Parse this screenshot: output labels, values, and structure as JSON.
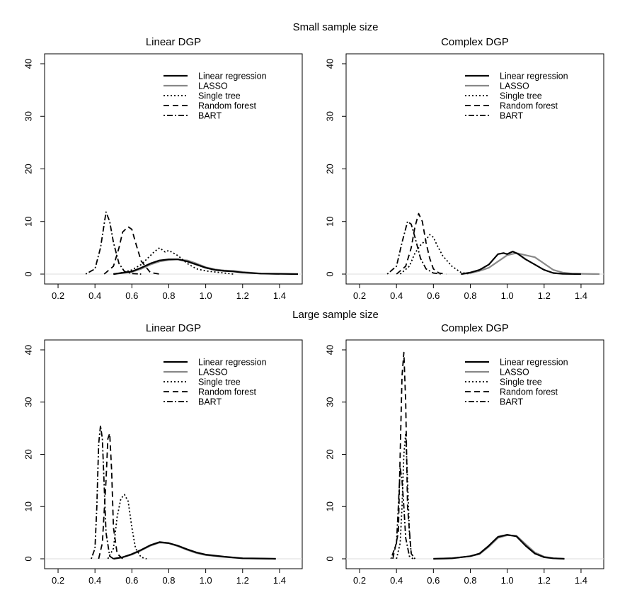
{
  "row_titles": [
    "Small sample size",
    "Large sample size"
  ],
  "legend": [
    {
      "label": "Linear regression",
      "color": "#000000",
      "dash": "solid",
      "width": "thick"
    },
    {
      "label": "LASSO",
      "color": "#888888",
      "dash": "solid",
      "width": "thick"
    },
    {
      "label": "Single tree",
      "color": "#000000",
      "dash": "dotted",
      "width": "normal"
    },
    {
      "label": "Random forest",
      "color": "#000000",
      "dash": "dashed",
      "width": "normal"
    },
    {
      "label": "BART",
      "color": "#000000",
      "dash": "dotdash",
      "width": "normal"
    }
  ],
  "chart_data": [
    {
      "type": "line",
      "title": "Linear DGP",
      "row": "Small sample size",
      "xlim": [
        0.15,
        1.5
      ],
      "ylim": [
        0,
        40
      ],
      "x_ticks": [
        0.2,
        0.4,
        0.6,
        0.8,
        1.0,
        1.2,
        1.4
      ],
      "x_tick_labels": [
        "0.2",
        "0.4",
        "0.6",
        "0.8",
        "1.0",
        "1.2",
        "1.4"
      ],
      "y_ticks": [
        0,
        10,
        20,
        30,
        40
      ],
      "y_tick_labels": [
        "0",
        "10",
        "20",
        "30",
        "40"
      ],
      "series": [
        {
          "name": "Linear regression",
          "x": [
            0.5,
            0.6,
            0.65,
            0.7,
            0.75,
            0.8,
            0.85,
            0.9,
            0.95,
            1.0,
            1.05,
            1.1,
            1.15,
            1.2,
            1.3,
            1.4,
            1.5
          ],
          "y": [
            0,
            0.5,
            1.2,
            2,
            2.6,
            2.8,
            2.8,
            2.4,
            1.8,
            1.2,
            0.8,
            0.6,
            0.5,
            0.3,
            0.1,
            0.05,
            0
          ]
        },
        {
          "name": "LASSO",
          "x": [
            0.5,
            0.6,
            0.65,
            0.7,
            0.75,
            0.8,
            0.85,
            0.9,
            0.95,
            1.0,
            1.05,
            1.1,
            1.15,
            1.2,
            1.3,
            1.4
          ],
          "y": [
            0,
            0.4,
            1,
            1.8,
            2.4,
            2.7,
            2.8,
            2.6,
            2,
            1.3,
            0.9,
            0.7,
            0.6,
            0.4,
            0.1,
            0
          ]
        },
        {
          "name": "Single tree",
          "x": [
            0.5,
            0.55,
            0.6,
            0.65,
            0.7,
            0.72,
            0.75,
            0.78,
            0.8,
            0.85,
            0.9,
            0.95,
            1.0,
            1.05,
            1.1,
            1.15
          ],
          "y": [
            0,
            0.3,
            0.8,
            1.8,
            3.5,
            4.2,
            5,
            4.2,
            4.5,
            3.5,
            2,
            1,
            0.6,
            0.4,
            0.2,
            0
          ]
        },
        {
          "name": "Random forest",
          "x": [
            0.45,
            0.5,
            0.53,
            0.55,
            0.58,
            0.6,
            0.62,
            0.65,
            0.7,
            0.75
          ],
          "y": [
            0,
            1.5,
            5,
            8,
            9,
            8.5,
            6,
            2.5,
            0.3,
            0
          ]
        },
        {
          "name": "BART",
          "x": [
            0.35,
            0.4,
            0.43,
            0.46,
            0.48,
            0.5,
            0.53,
            0.56,
            0.6,
            0.65
          ],
          "y": [
            0,
            1,
            5,
            11.8,
            10,
            6,
            2,
            0.5,
            0.1,
            0
          ]
        }
      ]
    },
    {
      "type": "line",
      "title": "Complex DGP",
      "row": "Small sample size",
      "xlim": [
        0.15,
        1.5
      ],
      "ylim": [
        0,
        40
      ],
      "x_ticks": [
        0.2,
        0.4,
        0.6,
        0.8,
        1.0,
        1.2,
        1.4
      ],
      "x_tick_labels": [
        "0.2",
        "0.4",
        "0.6",
        "0.8",
        "1.0",
        "1.2",
        "1.4"
      ],
      "y_ticks": [
        0,
        10,
        20,
        30,
        40
      ],
      "y_tick_labels": [
        "0",
        "10",
        "20",
        "30",
        "40"
      ],
      "series": [
        {
          "name": "Linear regression",
          "x": [
            0.75,
            0.8,
            0.85,
            0.9,
            0.95,
            0.98,
            1.0,
            1.03,
            1.06,
            1.1,
            1.15,
            1.2,
            1.25,
            1.3,
            1.4
          ],
          "y": [
            0,
            0.3,
            0.8,
            1.8,
            3.8,
            4,
            3.8,
            4.3,
            3.8,
            2.8,
            1.8,
            0.8,
            0.2,
            0.05,
            0
          ]
        },
        {
          "name": "LASSO",
          "x": [
            0.75,
            0.8,
            0.85,
            0.9,
            0.95,
            1.0,
            1.05,
            1.1,
            1.15,
            1.2,
            1.25,
            1.3,
            1.35,
            1.4,
            1.5
          ],
          "y": [
            0,
            0.2,
            0.6,
            1.2,
            2.4,
            3.6,
            4,
            3.6,
            3.2,
            2,
            0.8,
            0.3,
            0.1,
            0.05,
            0
          ]
        },
        {
          "name": "Single tree",
          "x": [
            0.42,
            0.47,
            0.5,
            0.53,
            0.56,
            0.58,
            0.6,
            0.62,
            0.65,
            0.7,
            0.75,
            0.8
          ],
          "y": [
            0,
            1.5,
            4,
            5.5,
            6.5,
            7.5,
            7,
            5.5,
            3.5,
            1.5,
            0.3,
            0
          ]
        },
        {
          "name": "Random forest",
          "x": [
            0.4,
            0.45,
            0.48,
            0.5,
            0.52,
            0.54,
            0.56,
            0.58,
            0.6,
            0.63,
            0.67
          ],
          "y": [
            0,
            1.5,
            5,
            9,
            11.5,
            10,
            6,
            3,
            1,
            0.2,
            0
          ]
        },
        {
          "name": "BART",
          "x": [
            0.35,
            0.4,
            0.43,
            0.46,
            0.48,
            0.5,
            0.53,
            0.56,
            0.6,
            0.65
          ],
          "y": [
            0,
            1.5,
            6,
            10,
            9.5,
            7,
            3,
            1,
            0.2,
            0
          ]
        }
      ]
    },
    {
      "type": "line",
      "title": "Linear DGP",
      "row": "Large sample size",
      "xlim": [
        0.15,
        1.5
      ],
      "ylim": [
        0,
        40
      ],
      "x_ticks": [
        0.2,
        0.4,
        0.6,
        0.8,
        1.0,
        1.2,
        1.4
      ],
      "x_tick_labels": [
        "0.2",
        "0.4",
        "0.6",
        "0.8",
        "1.0",
        "1.2",
        "1.4"
      ],
      "y_ticks": [
        0,
        10,
        20,
        30,
        40
      ],
      "y_tick_labels": [
        "0",
        "10",
        "20",
        "30",
        "40"
      ],
      "series": [
        {
          "name": "Linear regression",
          "x": [
            0.5,
            0.55,
            0.6,
            0.65,
            0.7,
            0.75,
            0.8,
            0.85,
            0.9,
            0.95,
            1.0,
            1.1,
            1.2,
            1.3,
            1.38
          ],
          "y": [
            0,
            0.3,
            0.9,
            1.7,
            2.6,
            3.2,
            3,
            2.5,
            1.8,
            1.2,
            0.8,
            0.4,
            0.1,
            0.05,
            0
          ]
        },
        {
          "name": "LASSO",
          "x": [
            0.5,
            0.55,
            0.6,
            0.65,
            0.7,
            0.75,
            0.8,
            0.85,
            0.9,
            0.95,
            1.0,
            1.1,
            1.2,
            1.3,
            1.38
          ],
          "y": [
            0,
            0.3,
            0.8,
            1.6,
            2.5,
            3.1,
            3,
            2.4,
            1.7,
            1.1,
            0.7,
            0.35,
            0.1,
            0.05,
            0
          ]
        },
        {
          "name": "Single tree",
          "x": [
            0.47,
            0.5,
            0.52,
            0.54,
            0.56,
            0.58,
            0.6,
            0.62,
            0.65,
            0.68
          ],
          "y": [
            0,
            2,
            8,
            11.5,
            12.3,
            11,
            6,
            2,
            0.3,
            0
          ]
        },
        {
          "name": "Random forest",
          "x": [
            0.42,
            0.44,
            0.46,
            0.47,
            0.48,
            0.49,
            0.5,
            0.52,
            0.55
          ],
          "y": [
            0,
            3,
            15,
            23,
            24,
            17,
            6,
            1,
            0
          ]
        },
        {
          "name": "BART",
          "x": [
            0.38,
            0.4,
            0.41,
            0.42,
            0.43,
            0.44,
            0.45,
            0.46,
            0.48,
            0.5
          ],
          "y": [
            0,
            2,
            10,
            22,
            25.5,
            23,
            14,
            5,
            0.5,
            0
          ]
        }
      ]
    },
    {
      "type": "line",
      "title": "Complex DGP",
      "row": "Large sample size",
      "xlim": [
        0.15,
        1.5
      ],
      "ylim": [
        0,
        40
      ],
      "x_ticks": [
        0.2,
        0.4,
        0.6,
        0.8,
        1.0,
        1.2,
        1.4
      ],
      "x_tick_labels": [
        "0.2",
        "0.4",
        "0.6",
        "0.8",
        "1.0",
        "1.2",
        "1.4"
      ],
      "y_ticks": [
        0,
        10,
        20,
        30,
        40
      ],
      "y_tick_labels": [
        "0",
        "10",
        "20",
        "30",
        "40"
      ],
      "series": [
        {
          "name": "Linear regression",
          "x": [
            0.6,
            0.7,
            0.8,
            0.85,
            0.9,
            0.95,
            1.0,
            1.05,
            1.1,
            1.15,
            1.2,
            1.25,
            1.31
          ],
          "y": [
            0,
            0.1,
            0.5,
            1,
            2.5,
            4.2,
            4.6,
            4.3,
            2.5,
            1,
            0.3,
            0.1,
            0
          ]
        },
        {
          "name": "LASSO",
          "x": [
            0.6,
            0.7,
            0.8,
            0.85,
            0.9,
            0.95,
            1.0,
            1.05,
            1.1,
            1.15,
            1.2,
            1.25,
            1.31
          ],
          "y": [
            0,
            0.1,
            0.5,
            0.9,
            2.3,
            4,
            4.5,
            4.4,
            2.8,
            1.2,
            0.4,
            0.1,
            0
          ]
        },
        {
          "name": "Single tree",
          "x": [
            0.4,
            0.42,
            0.43,
            0.44,
            0.45,
            0.46,
            0.47,
            0.48,
            0.5
          ],
          "y": [
            0,
            3,
            10,
            20,
            24,
            15,
            5,
            1,
            0
          ]
        },
        {
          "name": "Random forest",
          "x": [
            0.38,
            0.41,
            0.42,
            0.43,
            0.44,
            0.45,
            0.46,
            0.48,
            0.5
          ],
          "y": [
            0,
            5,
            20,
            35,
            39.5,
            30,
            10,
            1,
            0
          ]
        },
        {
          "name": "BART",
          "x": [
            0.37,
            0.4,
            0.41,
            0.42,
            0.43,
            0.44,
            0.45,
            0.47,
            0.49
          ],
          "y": [
            0,
            3,
            10,
            17.5,
            15,
            10,
            4,
            0.5,
            0
          ]
        }
      ]
    }
  ]
}
